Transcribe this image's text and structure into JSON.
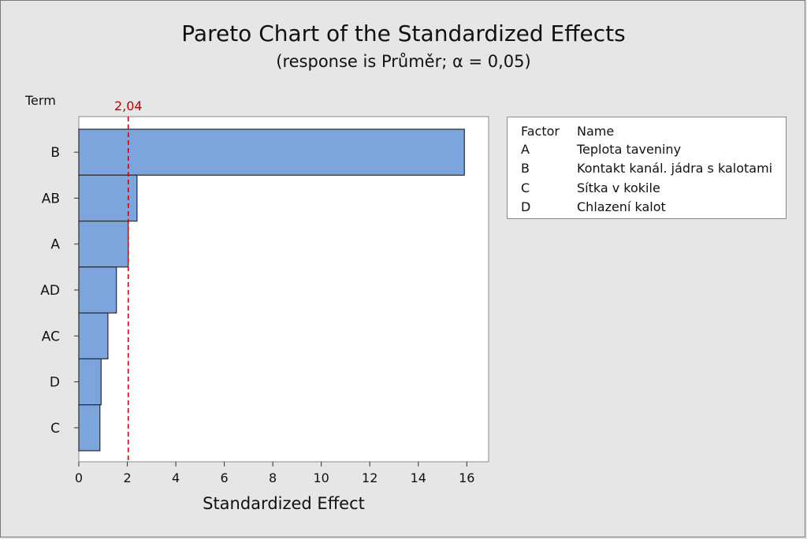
{
  "title": "Pareto Chart of the Standardized Effects",
  "subtitle": "(response is Průměr; α = 0,05)",
  "colors": {
    "background": "#e6e6e6",
    "plot_background": "#ffffff",
    "bar_fill": "#7ba5dc",
    "bar_stroke": "#2b2b2b",
    "reference_line": "#c00000"
  },
  "legend": {
    "header_factor": "Factor",
    "header_name": "Name",
    "rows": [
      {
        "factor": "A",
        "name": "Teplota taveniny"
      },
      {
        "factor": "B",
        "name": "Kontakt kanál. jádra s kalotami"
      },
      {
        "factor": "C",
        "name": "Sítka v kokile"
      },
      {
        "factor": "D",
        "name": "Chlazení kalot"
      }
    ]
  },
  "chart_data": {
    "type": "bar",
    "orientation": "horizontal",
    "title": "Pareto Chart of the Standardized Effects",
    "subtitle": "(response is Průměr; α = 0,05)",
    "xlabel": "Standardized Effect",
    "ylabel": "Term",
    "categories": [
      "B",
      "AB",
      "A",
      "AD",
      "AC",
      "D",
      "C"
    ],
    "values": [
      15.9,
      2.4,
      2.04,
      1.55,
      1.2,
      0.92,
      0.87
    ],
    "xlim": [
      0,
      16.9
    ],
    "xticks": [
      0,
      2,
      4,
      6,
      8,
      10,
      12,
      14,
      16
    ],
    "reference_line": {
      "value": 2.04,
      "label": "2,04"
    },
    "grid": false
  }
}
